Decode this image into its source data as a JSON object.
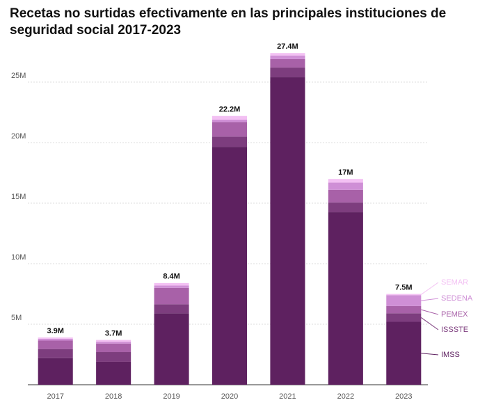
{
  "chart_data": {
    "type": "stacked_bar",
    "title": "Recetas no surtidas efectivamente en las principales instituciones de seguridad social 2017-2023",
    "categories": [
      "2017",
      "2018",
      "2019",
      "2020",
      "2021",
      "2022",
      "2023"
    ],
    "series": [
      {
        "name": "IMSS",
        "color": "#5e2160",
        "values": [
          2.2,
          1.9,
          5.9,
          19.65,
          25.4,
          14.25,
          5.2
        ]
      },
      {
        "name": "ISSSTE",
        "color": "#7d3d7e",
        "values": [
          0.75,
          0.8,
          0.75,
          0.85,
          0.8,
          0.8,
          0.7
        ]
      },
      {
        "name": "PEMEX",
        "color": "#a861a8",
        "values": [
          0.7,
          0.7,
          1.35,
          1.2,
          0.7,
          1.05,
          0.6
        ]
      },
      {
        "name": "SEDENA",
        "color": "#cf8fd6",
        "values": [
          0.15,
          0.15,
          0.2,
          0.2,
          0.3,
          0.6,
          0.9
        ]
      },
      {
        "name": "SEMAR",
        "color": "#f3c0f3",
        "values": [
          0.1,
          0.15,
          0.2,
          0.3,
          0.2,
          0.3,
          0.1
        ]
      }
    ],
    "totals": {
      "values": [
        3.9,
        3.7,
        8.4,
        22.2,
        27.4,
        17,
        7.5
      ],
      "value_labels": [
        "3.9M",
        "3.7M",
        "8.4M",
        "22.2M",
        "27.4M",
        "17M",
        "7.5M"
      ]
    },
    "ylim": [
      0,
      27.5
    ],
    "yticks": [
      {
        "value": 5,
        "label": "5M"
      },
      {
        "value": 10,
        "label": "10M"
      },
      {
        "value": 15,
        "label": "15M"
      },
      {
        "value": 20,
        "label": "20M"
      },
      {
        "value": 25,
        "label": "25M"
      }
    ],
    "grid": true
  }
}
